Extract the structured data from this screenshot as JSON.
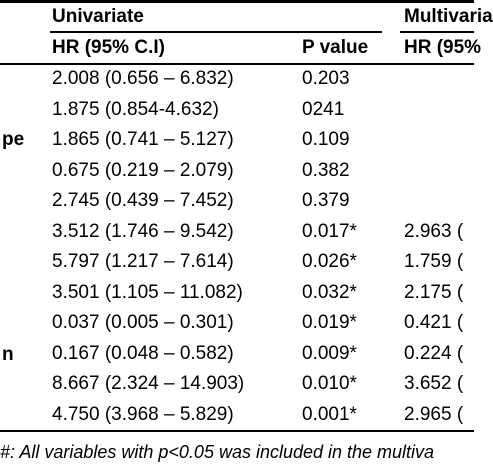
{
  "header": {
    "group_univariate": "Univariate",
    "group_multivariate": "Multivaria",
    "hr_col_univariate": "HR (95% C.I)",
    "p_col_univariate": "P value",
    "hr_col_multivariate": "HR (95%"
  },
  "left_labels": {
    "row3": "pe",
    "row10": "n"
  },
  "rows": [
    {
      "hr": "2.008 (0.656 – 6.832)",
      "p": "0.203",
      "mhr": ""
    },
    {
      "hr": "1.875 (0.854-4.632)",
      "p": "0241",
      "mhr": ""
    },
    {
      "hr": "1.865 (0.741 – 5.127)",
      "p": "0.109",
      "mhr": ""
    },
    {
      "hr": "0.675 (0.219 – 2.079)",
      "p": "0.382",
      "mhr": ""
    },
    {
      "hr": "2.745 (0.439 – 7.452)",
      "p": "0.379",
      "mhr": ""
    },
    {
      "hr": "3.512 (1.746 – 9.542)",
      "p": "0.017*",
      "mhr": "2.963 ("
    },
    {
      "hr": "5.797 (1.217 – 7.614)",
      "p": "0.026*",
      "mhr": "1.759 ("
    },
    {
      "hr": "3.501 (1.105 – 11.082)",
      "p": "0.032*",
      "mhr": "2.175 ("
    },
    {
      "hr": "0.037 (0.005 – 0.301)",
      "p": "0.019*",
      "mhr": "0.421 ("
    },
    {
      "hr": "0.167 (0.048 – 0.582)",
      "p": "0.009*",
      "mhr": "0.224 ("
    },
    {
      "hr": "8.667 (2.324 – 14.903)",
      "p": "0.010*",
      "mhr": "3.652 ("
    },
    {
      "hr": "4.750 (3.968 – 5.829)",
      "p": "0.001*",
      "mhr": "2.965 ("
    }
  ],
  "footnote": "#: All variables with p<0.05 was included in the multiva"
}
